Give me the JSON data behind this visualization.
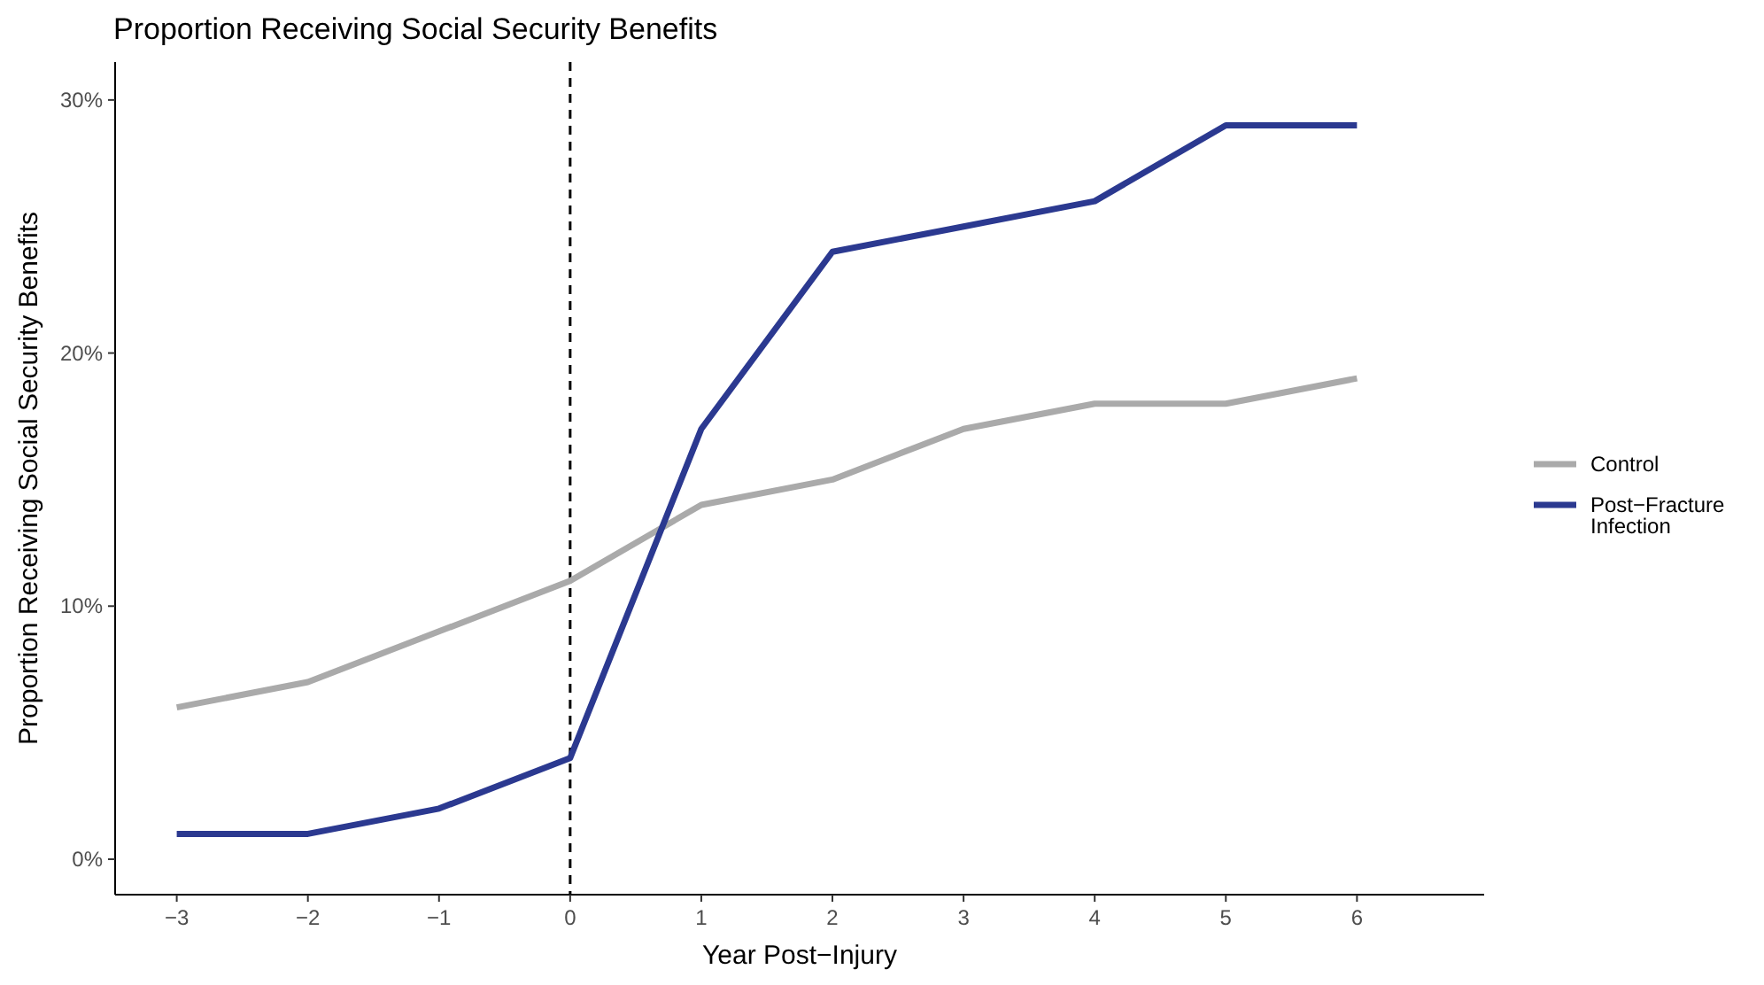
{
  "chart_data": {
    "type": "line",
    "title": "Proportion Receiving Social Security Benefits",
    "xlabel": "Year Post−Injury",
    "ylabel": "Proportion Receiving Social Security Benefits",
    "x": [
      -3,
      -2,
      -1,
      0,
      1,
      2,
      3,
      4,
      5,
      6
    ],
    "series": [
      {
        "name": "Control",
        "color": "#aaaaaa",
        "values": [
          6,
          7,
          9,
          11,
          14,
          15,
          17,
          18,
          18,
          19
        ]
      },
      {
        "name": "Post−Fracture Infection",
        "color": "#2b3990",
        "values": [
          1,
          1,
          2,
          4,
          17,
          24,
          25,
          26,
          29,
          29
        ]
      }
    ],
    "xlim": [
      -3.47,
      6.97
    ],
    "ylim": [
      -1.4,
      31.5
    ],
    "xticks": [
      {
        "value": -3,
        "label": "−3"
      },
      {
        "value": -2,
        "label": "−2"
      },
      {
        "value": -1,
        "label": "−1"
      },
      0,
      1,
      2,
      3,
      4,
      5,
      6
    ],
    "yticks": [
      {
        "value": 0,
        "label": "0%"
      },
      {
        "value": 10,
        "label": "10%"
      },
      {
        "value": 20,
        "label": "20%"
      },
      {
        "value": 30,
        "label": "30%"
      }
    ],
    "ref_lines": [
      {
        "axis": "x",
        "value": 0,
        "color": "#000000",
        "line_style": "dashed"
      }
    ],
    "grid": false,
    "legend": "right",
    "line_style": "solid",
    "marker": "none"
  }
}
